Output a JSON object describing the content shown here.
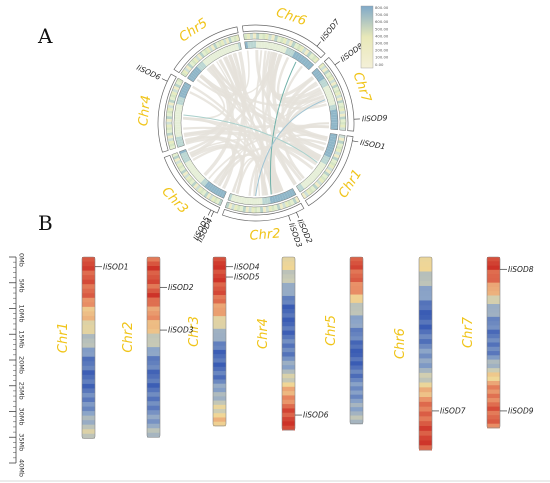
{
  "panels": {
    "a": "A",
    "b": "B"
  },
  "circos": {
    "chromosomes": [
      {
        "id": "chr1",
        "label": "Chr1",
        "length_mb": 35.2
      },
      {
        "id": "chr2",
        "label": "Chr2",
        "length_mb": 35.0
      },
      {
        "id": "chr3",
        "label": "Chr3",
        "length_mb": 32.8
      },
      {
        "id": "chr4",
        "label": "Chr4",
        "length_mb": 33.6
      },
      {
        "id": "chr5",
        "label": "Chr5",
        "length_mb": 32.4
      },
      {
        "id": "chr6",
        "label": "Chr6",
        "length_mb": 37.5
      },
      {
        "id": "chr7",
        "label": "Chr7",
        "length_mb": 33.2
      }
    ],
    "gene_labels": [
      "IiSOD1",
      "IiSOD2",
      "IiSOD3",
      "IiSOD4",
      "IiSOD5",
      "IiSOD6",
      "IiSOD7",
      "IiSOD8",
      "IiSOD9"
    ],
    "legend": {
      "ticks": [
        "800.00",
        "700.00",
        "600.00",
        "500.00",
        "400.00",
        "300.00",
        "200.00",
        "100.00",
        "0.00"
      ]
    }
  },
  "chart_data": {
    "type": "heatmap",
    "title": "",
    "scale_unit": "Mb",
    "scale_ticks": [
      "0Mb",
      "5Mb",
      "10Mb",
      "15Mb",
      "20Mb",
      "25Mb",
      "30Mb",
      "35Mb",
      "40Mb"
    ],
    "scale_range_mb": [
      0,
      40
    ],
    "chromosomes": [
      {
        "label": "Chr1",
        "length_mb": 35.2,
        "density": [
          0.98,
          0.92,
          0.88,
          0.85,
          0.8,
          0.7,
          0.62,
          0.55,
          0.42,
          0.35,
          0.22,
          0.12,
          0.08,
          0.05,
          0.07,
          0.12,
          0.22,
          0.3,
          0.4,
          0.45
        ]
      },
      {
        "label": "Chr2",
        "length_mb": 35.0,
        "density": [
          0.88,
          0.96,
          0.9,
          0.85,
          0.92,
          0.78,
          0.72,
          0.68,
          0.5,
          0.38,
          0.25,
          0.15,
          0.1,
          0.05,
          0.06,
          0.1,
          0.18,
          0.22,
          0.28,
          0.38
        ]
      },
      {
        "label": "Chr3",
        "length_mb": 32.8,
        "density": [
          1.0,
          0.98,
          0.95,
          0.9,
          0.85,
          0.8,
          0.7,
          0.55,
          0.4,
          0.25,
          0.12,
          0.08,
          0.05,
          0.07,
          0.12,
          0.25,
          0.38,
          0.48,
          0.55,
          0.62
        ]
      },
      {
        "label": "Chr4",
        "length_mb": 33.6,
        "density": [
          0.6,
          0.5,
          0.42,
          0.32,
          0.18,
          0.1,
          0.05,
          0.03,
          0.05,
          0.08,
          0.12,
          0.18,
          0.28,
          0.4,
          0.52,
          0.65,
          0.8,
          0.9,
          0.95,
          0.98
        ]
      },
      {
        "label": "Chr5",
        "length_mb": 32.4,
        "density": [
          0.95,
          0.9,
          0.85,
          0.78,
          0.65,
          0.52,
          0.4,
          0.28,
          0.18,
          0.1,
          0.05,
          0.03,
          0.05,
          0.08,
          0.12,
          0.18,
          0.22,
          0.28,
          0.32,
          0.38
        ]
      },
      {
        "label": "Chr6",
        "length_mb": 37.5,
        "density": [
          0.62,
          0.5,
          0.38,
          0.28,
          0.15,
          0.05,
          0.03,
          0.06,
          0.1,
          0.15,
          0.22,
          0.32,
          0.45,
          0.58,
          0.7,
          0.8,
          0.88,
          0.92,
          0.95,
          0.9
        ]
      },
      {
        "label": "Chr7",
        "length_mb": 33.2,
        "density": [
          1.0,
          0.95,
          0.85,
          0.72,
          0.55,
          0.42,
          0.3,
          0.18,
          0.1,
          0.08,
          0.12,
          0.2,
          0.35,
          0.5,
          0.65,
          0.75,
          0.82,
          0.88,
          0.85,
          0.8
        ]
      }
    ],
    "genes": [
      {
        "label": "IiSOD1",
        "chromosome": "Chr1",
        "position_mb": 1.5
      },
      {
        "label": "IiSOD2",
        "chromosome": "Chr2",
        "position_mb": 5.5
      },
      {
        "label": "IiSOD3",
        "chromosome": "Chr2",
        "position_mb": 13.8
      },
      {
        "label": "IiSOD4",
        "chromosome": "Chr3",
        "position_mb": 1.5
      },
      {
        "label": "IiSOD5",
        "chromosome": "Chr3",
        "position_mb": 3.5
      },
      {
        "label": "IiSOD6",
        "chromosome": "Chr4",
        "position_mb": 30.3
      },
      {
        "label": "IiSOD7",
        "chromosome": "Chr6",
        "position_mb": 29.5
      },
      {
        "label": "IiSOD8",
        "chromosome": "Chr7",
        "position_mb": 2.0
      },
      {
        "label": "IiSOD9",
        "chromosome": "Chr7",
        "position_mb": 29.5
      }
    ]
  }
}
